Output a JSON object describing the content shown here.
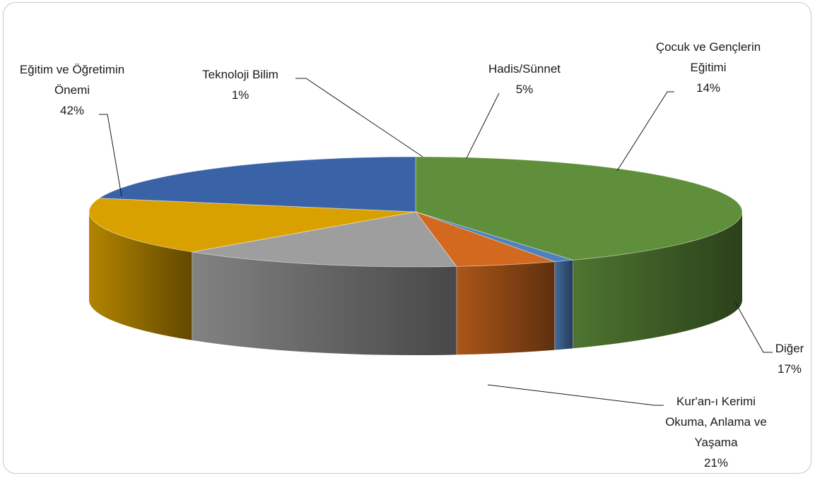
{
  "chart_data": {
    "type": "pie",
    "style": "3d",
    "title": "",
    "slices": [
      {
        "name": "Eğitim ve Öğretimin Önemi",
        "label_lines": [
          "Eğitim ve Öğretimin",
          "Önemi"
        ],
        "value": 42,
        "value_label": "42%",
        "color": "#5f8f3a"
      },
      {
        "name": "Teknoloji Bilim",
        "label_lines": [
          "Teknoloji Bilim"
        ],
        "value": 1,
        "value_label": "1%",
        "color": "#4f81bd"
      },
      {
        "name": "Hadis/Sünnet",
        "label_lines": [
          "Hadis/Sünnet"
        ],
        "value": 5,
        "value_label": "5%",
        "color": "#d2691e"
      },
      {
        "name": "Çocuk ve Gençlerin Eğitimi",
        "label_lines": [
          "Çocuk ve Gençlerin",
          "Eğitimi"
        ],
        "value": 14,
        "value_label": "14%",
        "color": "#9e9e9e"
      },
      {
        "name": "Diğer",
        "label_lines": [
          "Diğer"
        ],
        "value": 17,
        "value_label": "17%",
        "color": "#d9a100"
      },
      {
        "name": "Kur'an-ı Kerimi Okuma, Anlama ve Yaşama",
        "label_lines": [
          "Kur'an-ı Kerimi",
          "Okuma, Anlama ve",
          "Yaşama"
        ],
        "value": 21,
        "value_label": "21%",
        "color": "#3a62a7"
      }
    ]
  }
}
